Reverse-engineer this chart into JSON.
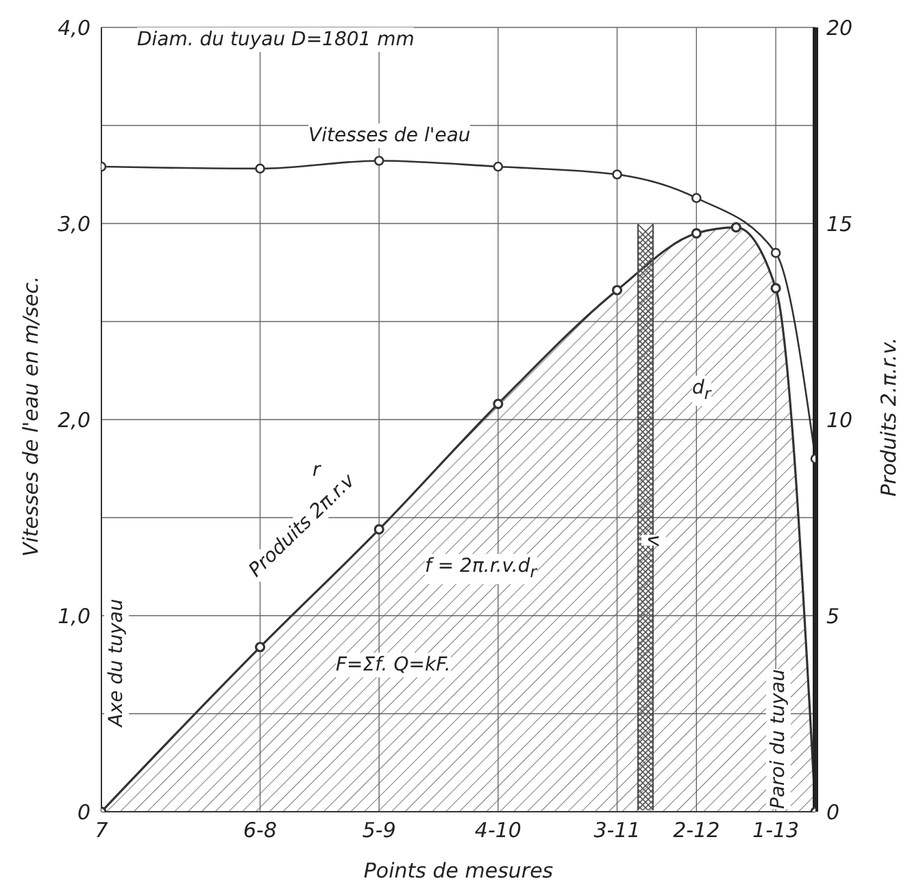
{
  "chart_data": {
    "type": "line",
    "xlabel": "Points de mesures",
    "ylabel": "Vitesses de l'eau en m/sec.",
    "y2label": "Produits 2.π.r.v.",
    "categories": [
      "7",
      null,
      null,
      null,
      "6-8",
      null,
      null,
      "5-9",
      null,
      null,
      "4-10",
      null,
      null,
      "3-11",
      null,
      "2-12",
      null,
      "1-13",
      null
    ],
    "ylim": [
      0,
      4
    ],
    "yticks": [
      {
        "value": 0,
        "label": "0"
      },
      {
        "value": 0.5,
        "label": null
      },
      {
        "value": 1,
        "label": "1,0"
      },
      {
        "value": 1.5,
        "label": null
      },
      {
        "value": 2,
        "label": "2,0"
      },
      {
        "value": 2.5,
        "label": null
      },
      {
        "value": 3,
        "label": "3,0"
      },
      {
        "value": 3.5,
        "label": null
      },
      {
        "value": 4,
        "label": "4,0"
      }
    ],
    "y2lim": [
      0,
      20
    ],
    "y2ticks": [
      0,
      5,
      10,
      15,
      20
    ],
    "series": [
      {
        "name": "Vitesses de l'eau",
        "color": "#333333",
        "values": [
          3.29,
          null,
          null,
          null,
          3.28,
          null,
          null,
          3.32,
          null,
          null,
          3.29,
          null,
          null,
          3.25,
          null,
          3.13,
          null,
          2.85,
          1.8
        ]
      },
      {
        "name": "Produits 2π.r.v",
        "type": "area",
        "axis": "y2",
        "color": "#333333",
        "values": [
          0,
          null,
          null,
          null,
          4.2,
          null,
          null,
          7.2,
          null,
          null,
          10.4,
          null,
          null,
          13.3,
          null,
          14.75,
          14.9,
          13.35,
          0
        ]
      }
    ],
    "annotations": [
      "Diam. du tuyau D=1801 mm",
      "r",
      "d$_{r}$",
      "v",
      "f = 2π.r.v.d$_{r}$",
      "F=Σf.   Q=kF.",
      "Axe du tuyau",
      "Paroi du tuyau"
    ],
    "grid": true,
    "marker": "circle",
    "line_style": "solid"
  }
}
